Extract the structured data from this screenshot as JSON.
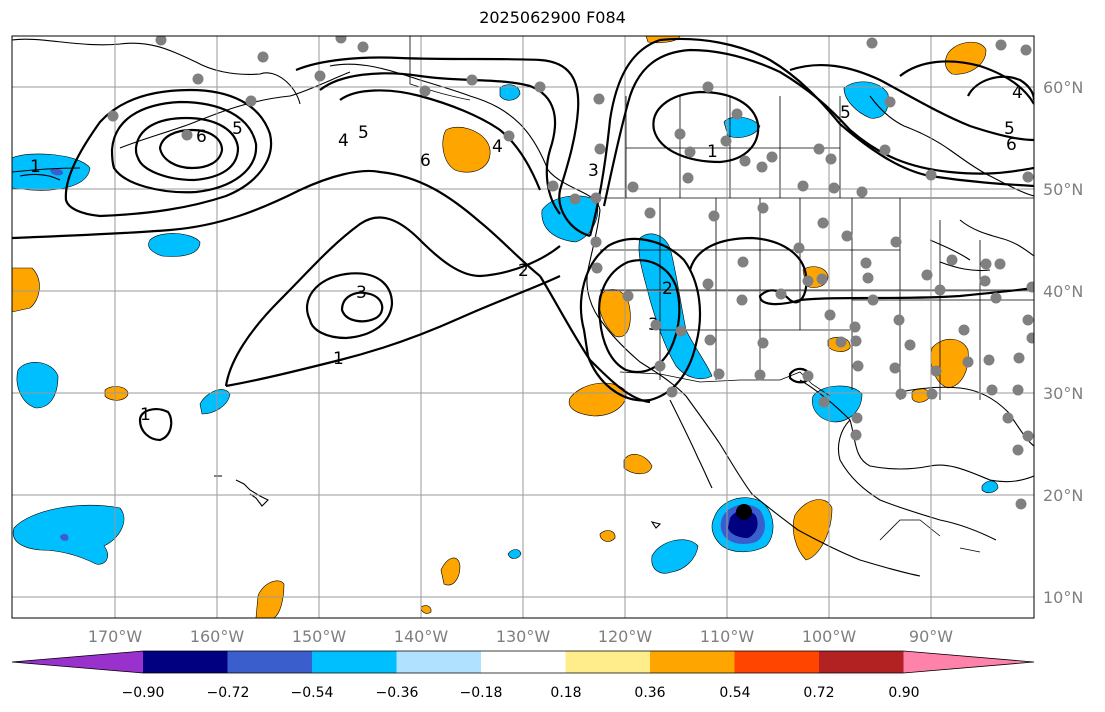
{
  "title": "2025062900 F084",
  "map": {
    "lon_ticks": [
      "170°W",
      "160°W",
      "150°W",
      "140°W",
      "130°W",
      "120°W",
      "110°W",
      "100°W",
      "90°W"
    ],
    "lat_ticks": [
      "60°N",
      "50°N",
      "40°N",
      "30°N",
      "20°N",
      "10°N"
    ],
    "contour_labels": [
      "1",
      "2",
      "3",
      "4",
      "5",
      "6"
    ],
    "station_color": "#808080",
    "fill_colors": {
      "neg_0_90": "#000080",
      "neg_0_72": "#3a5fcd",
      "neg_0_54": "#00bfff",
      "pos_0_36": "#ffa500"
    }
  },
  "colorbar": {
    "labels": [
      "−0.90",
      "−0.72",
      "−0.54",
      "−0.36",
      "−0.18",
      "0.18",
      "0.36",
      "0.54",
      "0.72",
      "0.90"
    ],
    "colors": [
      "#9932cc",
      "#000080",
      "#3a5fcd",
      "#00bfff",
      "#b0e2ff",
      "#ffffff",
      "#ffec8b",
      "#ffa500",
      "#ff4500",
      "#b22222",
      "#ff82ab"
    ]
  }
}
